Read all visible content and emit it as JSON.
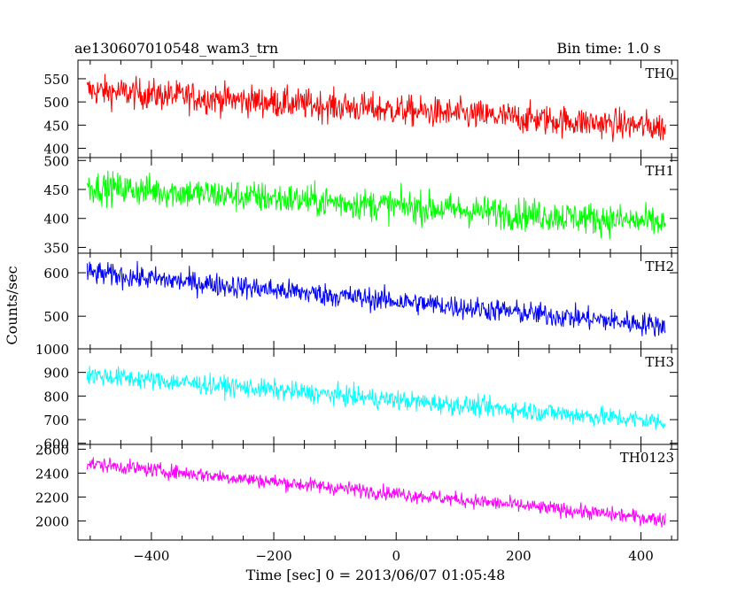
{
  "header": {
    "title": "ae130607010548_wam3_trn",
    "bin_time": "Bin time: 1.0 s"
  },
  "axes": {
    "xlabel": "Time [sec] 0 = 2013/06/07 01:05:48",
    "ylabel": "Counts/sec"
  },
  "chart_data": {
    "type": "line",
    "xlim": [
      -520,
      460
    ],
    "x_range": [
      -505,
      440
    ],
    "xticks": [
      -400,
      -200,
      0,
      200,
      400
    ],
    "xtick_labels": [
      "−400",
      "−200",
      "0",
      "200",
      "400"
    ],
    "panels": [
      {
        "name": "TH0",
        "color": "#ff0000",
        "ylim": [
          380,
          590
        ],
        "yticks": [
          400,
          450,
          500,
          550
        ],
        "ytick_labels": [
          "400",
          "450",
          "500",
          "550"
        ],
        "start": 525,
        "end": 445,
        "noise": 30,
        "clip": [
          375,
          600
        ]
      },
      {
        "name": "TH1",
        "color": "#00ff00",
        "ylim": [
          340,
          505
        ],
        "yticks": [
          350,
          400,
          450,
          500
        ],
        "ytick_labels": [
          "350",
          "400",
          "450",
          "500"
        ],
        "start": 455,
        "end": 392,
        "noise": 25,
        "clip": [
          335,
          505
        ]
      },
      {
        "name": "TH2",
        "color": "#0000ff",
        "ylim": [
          425,
          645
        ],
        "yticks": [
          500,
          600
        ],
        "ytick_labels": [
          "500",
          "600"
        ],
        "start": 600,
        "end": 478,
        "noise": 24,
        "clip": [
          420,
          650
        ]
      },
      {
        "name": "TH3",
        "color": "#00ffff",
        "ylim": [
          595,
          1000
        ],
        "yticks": [
          600,
          700,
          800,
          900,
          1000
        ],
        "ytick_labels": [
          "600",
          "700",
          "800",
          "900",
          "1000"
        ],
        "start": 890,
        "end": 690,
        "noise": 38,
        "clip": [
          595,
          1000
        ]
      },
      {
        "name": "TH0123",
        "color": "#ff00ff",
        "ylim": [
          1840,
          2640
        ],
        "yticks": [
          2000,
          2200,
          2400,
          2600
        ],
        "ytick_labels": [
          "2000",
          "2200",
          "2400",
          "2600"
        ],
        "start": 2480,
        "end": 2010,
        "noise": 55,
        "clip": [
          1840,
          2660
        ]
      }
    ]
  }
}
